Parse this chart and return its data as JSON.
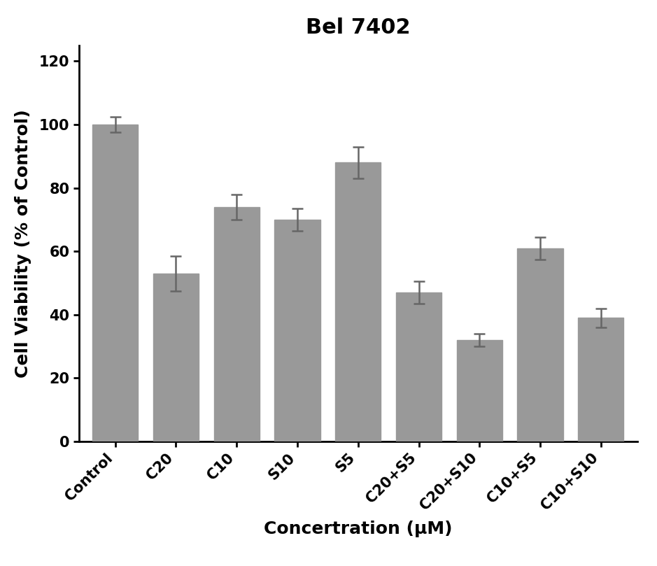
{
  "title": "Bel 7402",
  "xlabel": "Concertration (μM)",
  "ylabel": "Cell Viability (% of Control)",
  "categories": [
    "Control",
    "C20",
    "C10",
    "S10",
    "S5",
    "C20+S5",
    "C20+S10",
    "C10+S5",
    "C10+S10"
  ],
  "values": [
    100,
    53,
    74,
    70,
    88,
    47,
    32,
    61,
    39
  ],
  "errors": [
    2.5,
    5.5,
    4.0,
    3.5,
    5.0,
    3.5,
    2.0,
    3.5,
    3.0
  ],
  "bar_color": "#999999",
  "bar_edgecolor": "#999999",
  "ylim": [
    0,
    125
  ],
  "yticks": [
    0,
    20,
    40,
    60,
    80,
    100,
    120
  ],
  "title_fontsize": 22,
  "title_fontweight": "bold",
  "axis_label_fontsize": 18,
  "axis_label_fontweight": "bold",
  "tick_fontsize": 15,
  "bar_width": 0.75,
  "figure_facecolor": "#ffffff",
  "axes_facecolor": "#ffffff",
  "capsize": 6,
  "ecolor": "#666666",
  "elinewidth": 1.8,
  "capthick": 1.8
}
